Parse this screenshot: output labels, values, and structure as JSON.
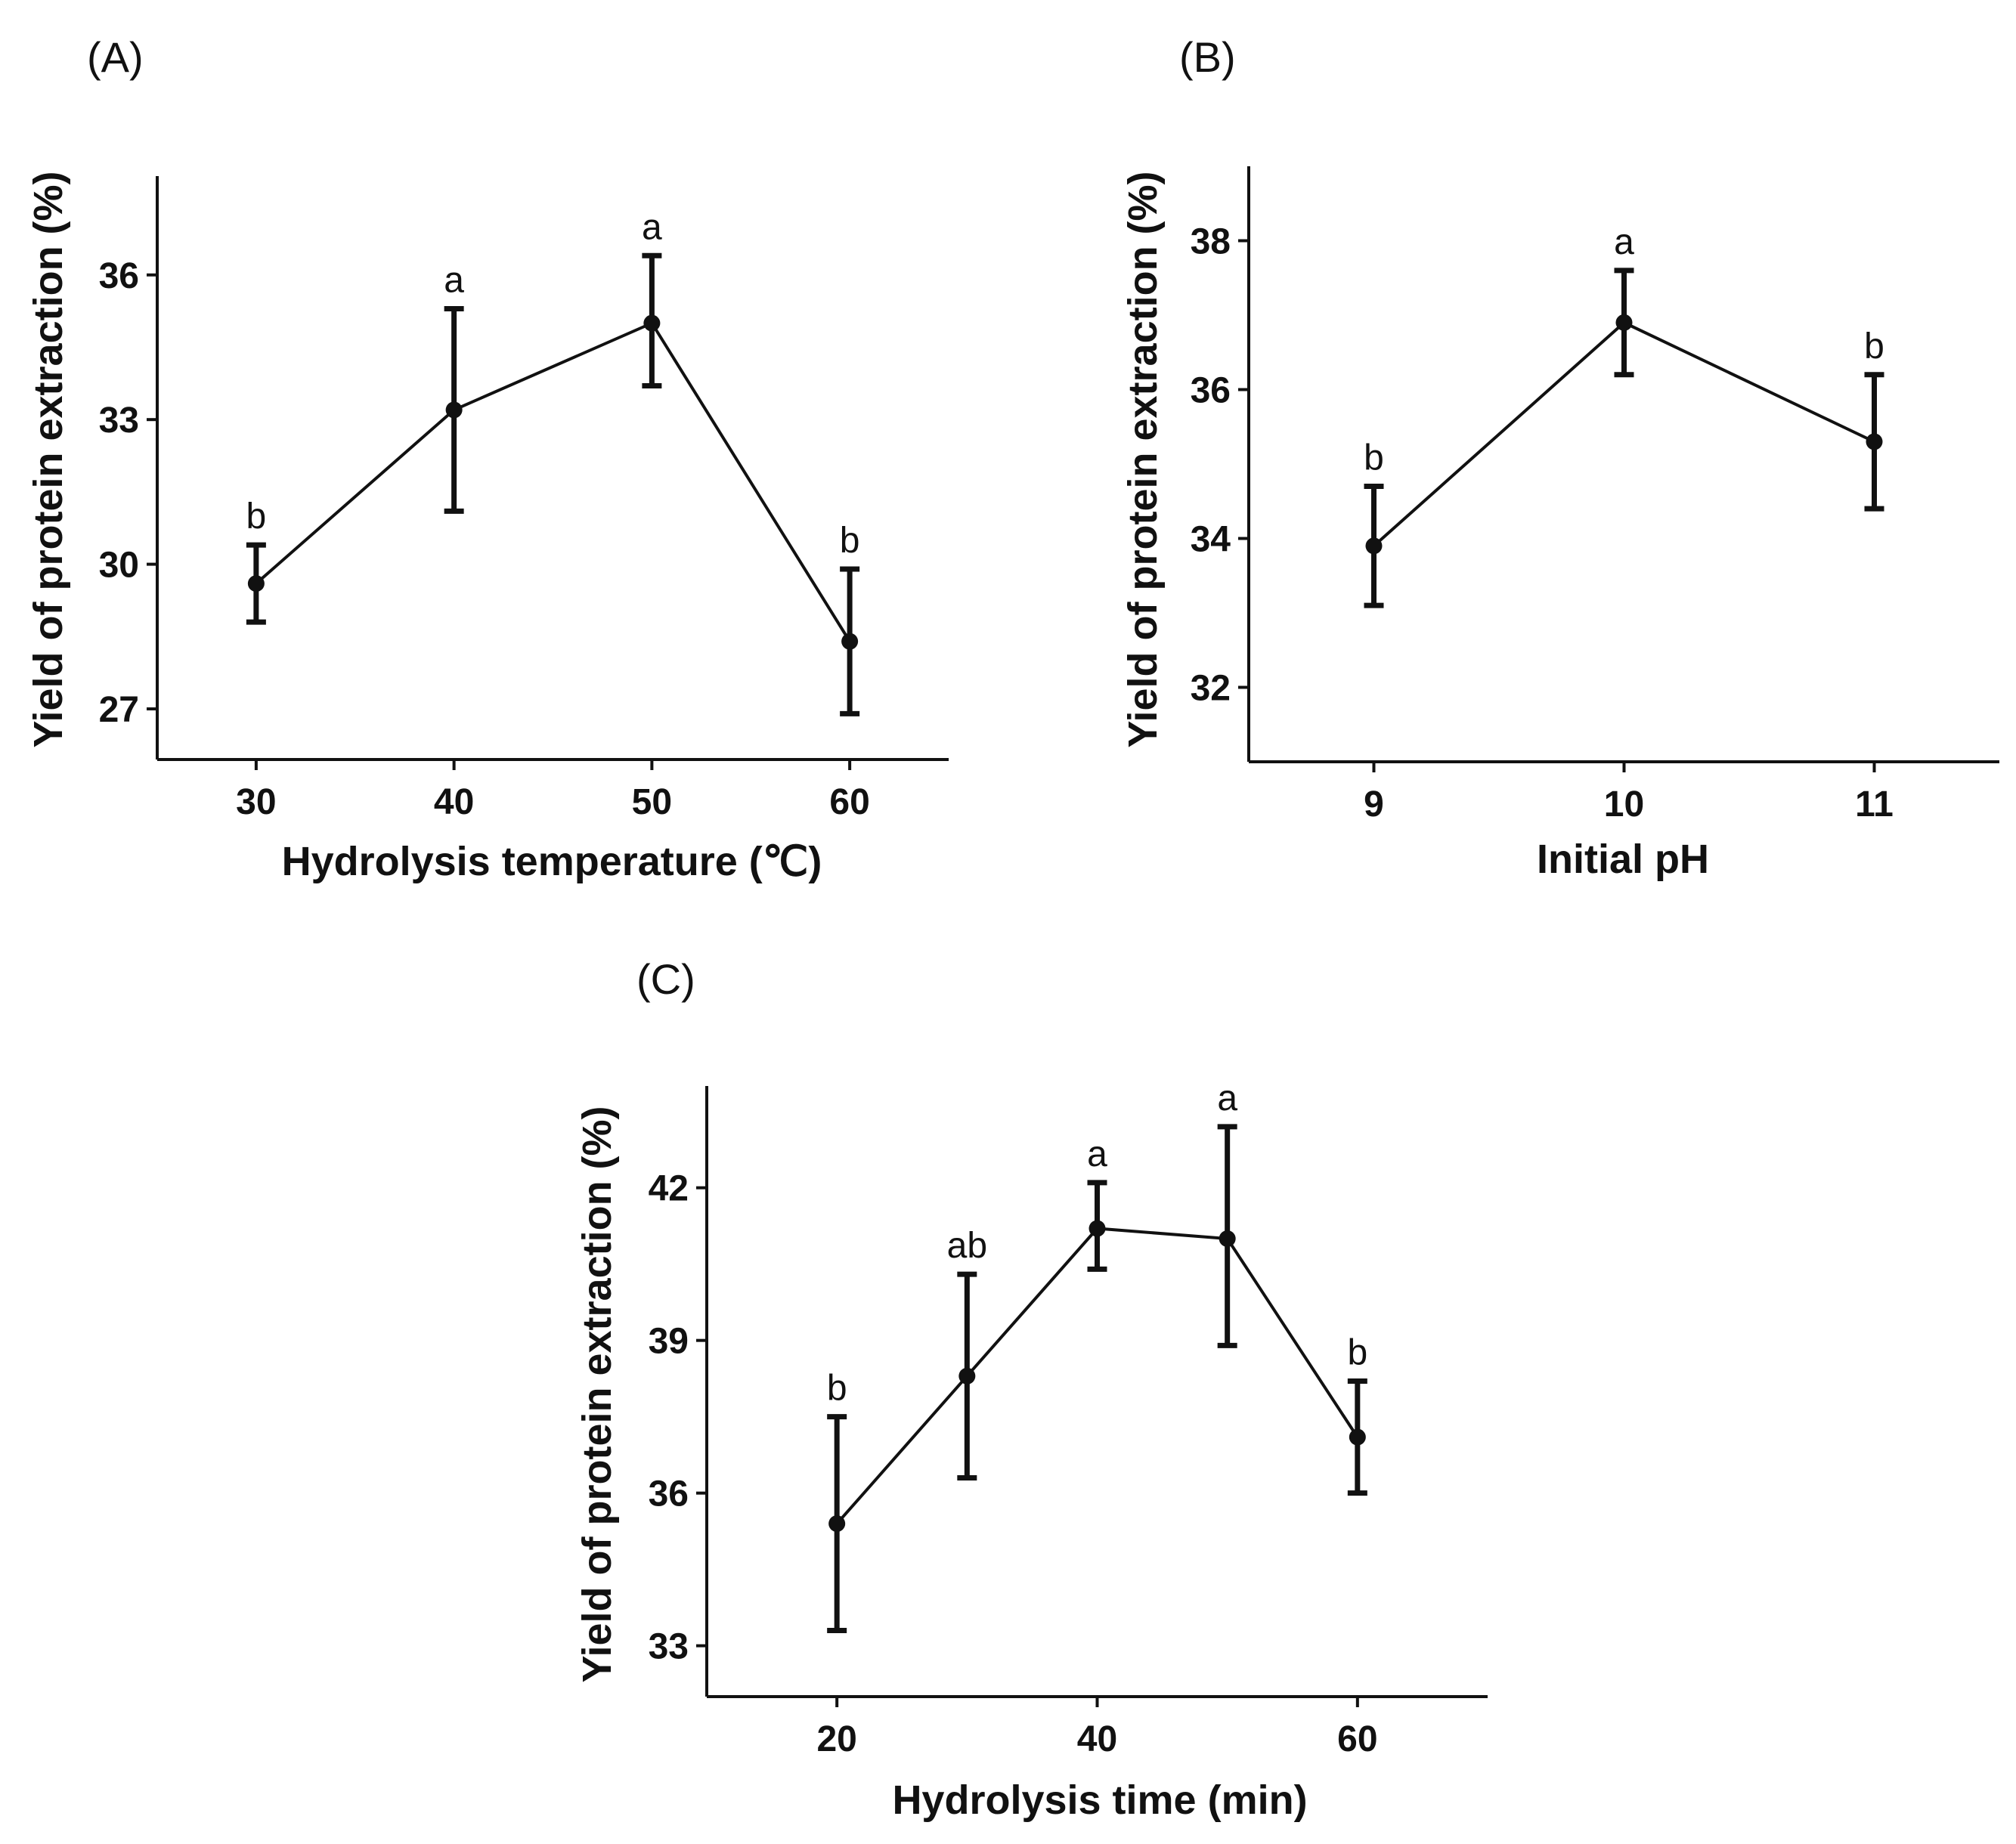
{
  "chart_data": [
    {
      "panel": "(A)",
      "type": "line",
      "xlabel": "Hydrolysis temperature (℃)",
      "ylabel": "Yield of protein extraction (%)",
      "x": [
        30,
        40,
        50,
        60
      ],
      "x_tick_labels": [
        "30",
        "40",
        "50",
        "60"
      ],
      "y_ticks": [
        27,
        30,
        33,
        36
      ],
      "y_tick_labels": [
        "27",
        "30",
        "33",
        "36"
      ],
      "xlim": [
        25,
        65
      ],
      "ylim": [
        25.95,
        38.05
      ],
      "series": [
        {
          "name": "Yield",
          "values": [
            29.6,
            33.2,
            35.0,
            28.4
          ],
          "error_low": [
            28.8,
            31.1,
            33.7,
            26.9
          ],
          "error_high": [
            30.4,
            35.3,
            36.4,
            29.9
          ],
          "labels": [
            "b",
            "a",
            "a",
            "b"
          ]
        }
      ]
    },
    {
      "panel": "(B)",
      "type": "line",
      "xlabel": "Initial pH",
      "ylabel": "Yield of protein extraction (%)",
      "x": [
        9,
        10,
        11
      ],
      "x_tick_labels": [
        "9",
        "10",
        "11"
      ],
      "y_ticks": [
        32,
        34,
        36,
        38
      ],
      "y_tick_labels": [
        "32",
        "34",
        "36",
        "38"
      ],
      "xlim": [
        8.5,
        11.5
      ],
      "ylim": [
        31.0,
        39.0
      ],
      "series": [
        {
          "name": "Yield",
          "values": [
            33.9,
            36.9,
            35.3
          ],
          "error_low": [
            33.1,
            36.2,
            34.4
          ],
          "error_high": [
            34.7,
            37.6,
            36.2
          ],
          "labels": [
            "b",
            "a",
            "b"
          ]
        }
      ]
    },
    {
      "panel": "(C)",
      "type": "line",
      "xlabel": "Hydrolysis time (min)",
      "ylabel": "Yield of protein extraction (%)",
      "x": [
        20,
        30,
        40,
        50,
        60
      ],
      "x_tick_labels": [
        "20",
        "40",
        "60"
      ],
      "x_tick_values": [
        20,
        40,
        60
      ],
      "y_ticks": [
        33,
        36,
        39,
        42
      ],
      "y_tick_labels": [
        "33",
        "36",
        "39",
        "42"
      ],
      "xlim": [
        10,
        70
      ],
      "ylim": [
        32.0,
        44.0
      ],
      "series": [
        {
          "name": "Yield",
          "values": [
            35.4,
            38.3,
            41.2,
            41.0,
            37.1
          ],
          "error_low": [
            33.3,
            36.3,
            40.4,
            38.9,
            36.0
          ],
          "error_high": [
            37.5,
            40.3,
            42.1,
            43.2,
            38.2
          ],
          "labels": [
            "b",
            "ab",
            "a",
            "a",
            "b"
          ]
        }
      ]
    }
  ]
}
